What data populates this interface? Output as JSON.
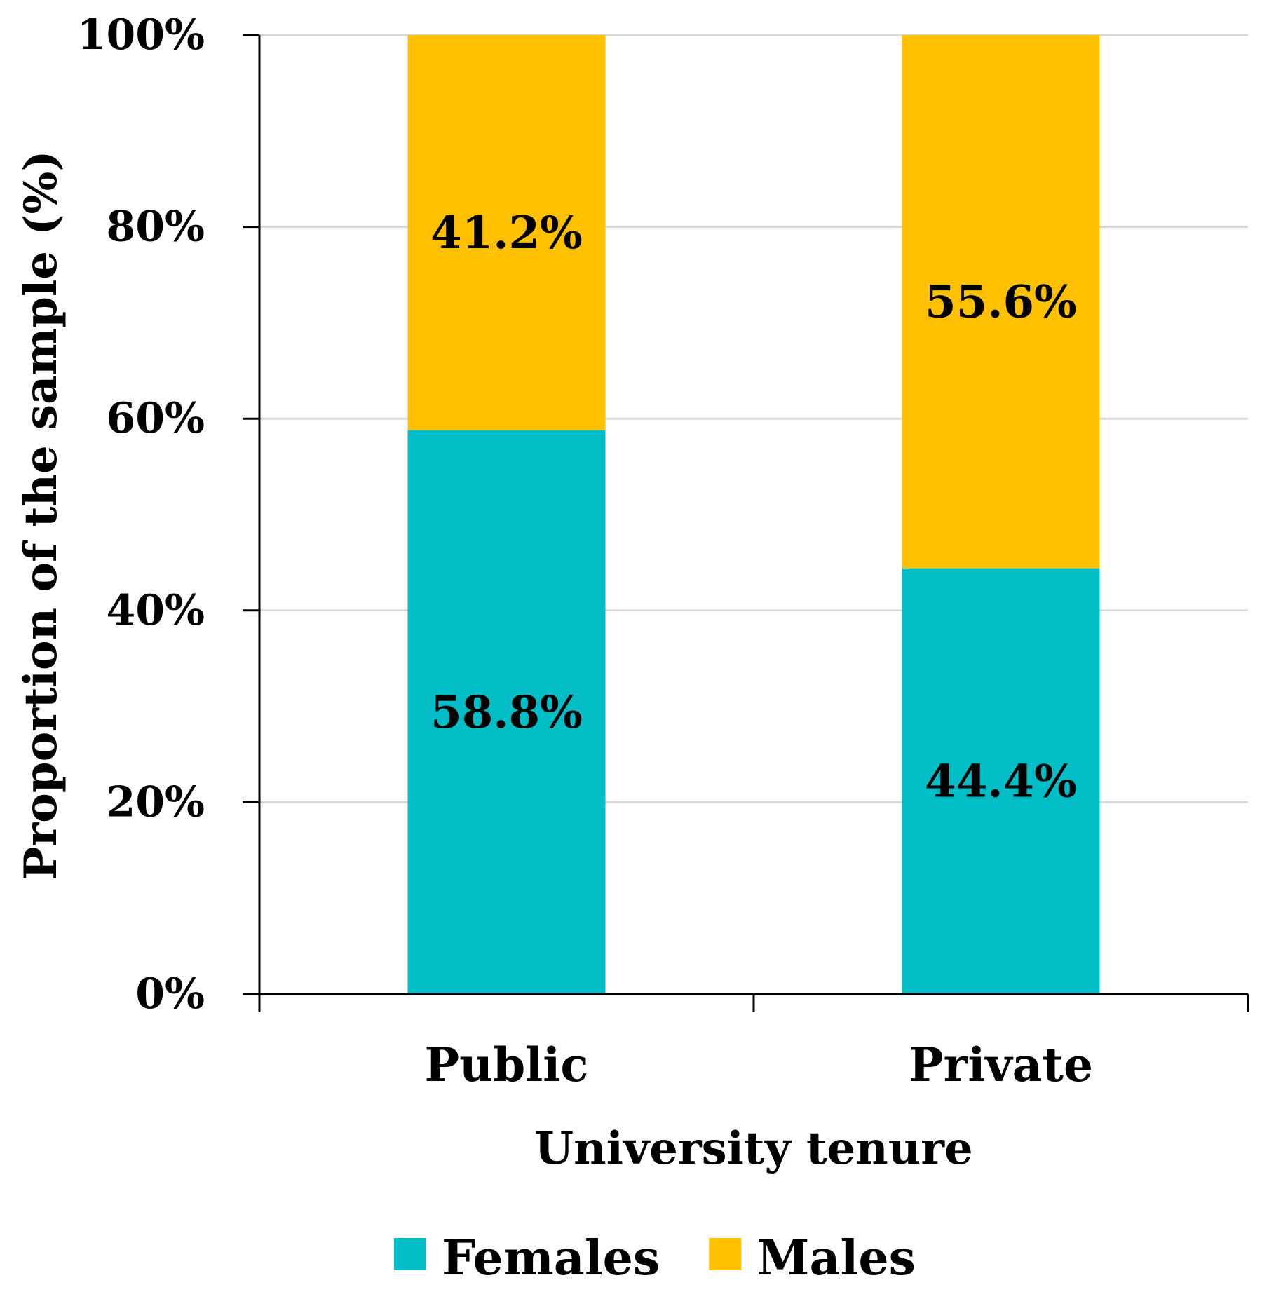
{
  "chart_data": {
    "type": "bar",
    "stacked": true,
    "categories": [
      "Public",
      "Private"
    ],
    "series": [
      {
        "name": "Females",
        "values": [
          58.8,
          44.4
        ],
        "labels": [
          "58.8%",
          "44.4%"
        ],
        "color": "#00BDC6"
      },
      {
        "name": "Males",
        "values": [
          41.2,
          55.6
        ],
        "labels": [
          "41.2%",
          "55.6%"
        ],
        "color": "#FFC000"
      }
    ],
    "xlabel": "University tenure",
    "ylabel": "Proportion of the sample (%)",
    "ylim": [
      0,
      100
    ],
    "yticks": [
      0,
      20,
      40,
      60,
      80,
      100
    ],
    "ytick_labels": [
      "0%",
      "20%",
      "40%",
      "60%",
      "80%",
      "100%"
    ],
    "grid": true,
    "legend_position": "bottom"
  }
}
